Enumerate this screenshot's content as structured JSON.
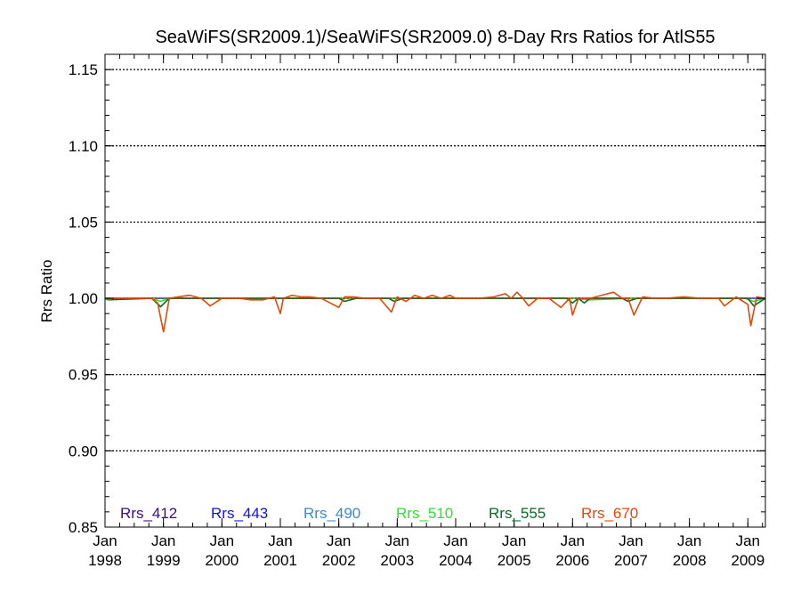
{
  "chart_data": {
    "type": "line",
    "title": "SeaWiFS(SR2009.1)/SeaWiFS(SR2009.0) 8-Day Rrs Ratios for AtlS55",
    "xlabel": "",
    "ylabel": "Rrs Ratio",
    "xlim": [
      1998.0,
      2009.3
    ],
    "ylim": [
      0.85,
      1.16
    ],
    "yticks": [
      0.85,
      0.9,
      0.95,
      1.0,
      1.05,
      1.1,
      1.15
    ],
    "ytick_labels": [
      "0.85",
      "0.90",
      "0.95",
      "1.00",
      "1.05",
      "1.10",
      "1.15"
    ],
    "xticks": [
      1998,
      1999,
      2000,
      2001,
      2002,
      2003,
      2004,
      2005,
      2006,
      2007,
      2008,
      2009
    ],
    "xtick_labels": [
      [
        "Jan",
        "1998"
      ],
      [
        "Jan",
        "1999"
      ],
      [
        "Jan",
        "2000"
      ],
      [
        "Jan",
        "2001"
      ],
      [
        "Jan",
        "2002"
      ],
      [
        "Jan",
        "2003"
      ],
      [
        "Jan",
        "2004"
      ],
      [
        "Jan",
        "2005"
      ],
      [
        "Jan",
        "2006"
      ],
      [
        "Jan",
        "2007"
      ],
      [
        "Jan",
        "2008"
      ],
      [
        "Jan",
        "2009"
      ]
    ],
    "grid": "dotted horizontal at major y ticks",
    "legend_position": "bottom",
    "series": [
      {
        "name": "Rrs_412",
        "color": "#3a0a8c",
        "x": [
          1998.0,
          1999.0,
          2000.0,
          2001.0,
          2002.0,
          2003.0,
          2004.0,
          2005.0,
          2006.0,
          2007.0,
          2008.0,
          2009.0,
          2009.3
        ],
        "y": [
          1.0,
          1.0,
          1.0,
          1.0,
          1.0,
          1.0,
          1.0,
          1.0,
          1.0,
          1.0,
          1.0,
          1.0,
          1.0
        ]
      },
      {
        "name": "Rrs_443",
        "color": "#1010f0",
        "x": [
          1998.0,
          1999.0,
          2000.0,
          2001.0,
          2002.0,
          2003.0,
          2004.0,
          2005.0,
          2006.0,
          2007.0,
          2008.0,
          2009.0,
          2009.3
        ],
        "y": [
          1.0,
          1.0,
          1.0,
          1.0,
          1.0,
          1.0,
          1.0,
          1.0,
          1.0,
          1.0,
          1.0,
          1.0,
          1.0
        ]
      },
      {
        "name": "Rrs_490",
        "color": "#3a8ad0",
        "x": [
          1998.0,
          1999.0,
          2000.0,
          2001.0,
          2002.0,
          2003.0,
          2004.0,
          2005.0,
          2006.0,
          2007.0,
          2008.0,
          2009.0,
          2009.3
        ],
        "y": [
          1.0,
          1.0,
          1.0,
          1.0,
          1.0,
          1.0,
          1.0,
          1.0,
          1.0,
          1.0,
          1.0,
          1.0,
          1.0
        ]
      },
      {
        "name": "Rrs_510",
        "color": "#30e030",
        "x": [
          1998.0,
          1998.8,
          1998.95,
          1999.1,
          1999.3,
          2003.0,
          2006.0,
          2006.3,
          2007.0,
          2008.95,
          2009.1,
          2009.3
        ],
        "y": [
          1.0,
          1.0,
          0.998,
          1.0,
          1.0,
          1.0,
          1.0,
          0.999,
          1.0,
          1.0,
          0.998,
          1.0
        ]
      },
      {
        "name": "Rrs_555",
        "color": "#0a6a2a",
        "x": [
          1998.0,
          1998.05,
          1998.8,
          1998.95,
          1999.1,
          1999.3,
          2000.0,
          2001.0,
          2002.0,
          2002.1,
          2002.3,
          2002.85,
          2002.95,
          2003.1,
          2004.0,
          2005.0,
          2005.9,
          2006.0,
          2006.1,
          2006.2,
          2006.3,
          2006.85,
          2006.95,
          2007.1,
          2008.0,
          2008.9,
          2009.0,
          2009.1,
          2009.3
        ],
        "y": [
          1.0,
          0.999,
          1.0,
          0.9945,
          1.0,
          1.0,
          1.0,
          1.0,
          1.0,
          0.998,
          1.0,
          1.0,
          0.998,
          1.0,
          1.0,
          1.0,
          1.0,
          0.997,
          1.0,
          0.997,
          1.0,
          1.0,
          0.998,
          1.0,
          1.0,
          1.0,
          1.0,
          0.995,
          1.0
        ]
      },
      {
        "name": "Rrs_670",
        "color": "#e04a0a",
        "x": [
          1998.0,
          1998.05,
          1998.15,
          1998.8,
          1998.9,
          1999.0,
          1999.1,
          1999.25,
          1999.45,
          1999.65,
          1999.8,
          2000.0,
          2000.3,
          2000.5,
          2000.7,
          2000.9,
          2001.0,
          2001.05,
          2001.2,
          2001.35,
          2001.5,
          2001.7,
          2002.0,
          2002.1,
          2002.25,
          2002.45,
          2002.7,
          2002.9,
          2003.0,
          2003.15,
          2003.3,
          2003.45,
          2003.6,
          2003.75,
          2003.9,
          2004.0,
          2004.15,
          2004.4,
          2004.65,
          2004.85,
          2004.95,
          2005.05,
          2005.15,
          2005.25,
          2005.4,
          2005.6,
          2005.8,
          2005.95,
          2006.0,
          2006.1,
          2006.2,
          2006.3,
          2006.5,
          2006.7,
          2006.85,
          2006.95,
          2007.05,
          2007.2,
          2007.4,
          2007.6,
          2007.9,
          2008.2,
          2008.5,
          2008.6,
          2008.8,
          2009.0,
          2009.05,
          2009.15,
          2009.3
        ],
        "y": [
          1.0,
          0.999,
          1.0,
          1.0,
          0.997,
          0.978,
          1.0,
          1.001,
          1.002,
          1.0,
          0.995,
          1.0,
          1.0,
          0.999,
          0.999,
          1.001,
          0.99,
          1.0,
          1.002,
          1.001,
          1.001,
          1.0,
          0.994,
          1.001,
          1.001,
          1.0,
          1.0,
          0.991,
          1.001,
          0.998,
          1.002,
          1.0,
          1.002,
          1.0,
          1.002,
          1.0,
          1.0,
          1.0,
          1.001,
          1.003,
          1.0,
          1.004,
          1.0,
          0.995,
          1.0,
          1.0,
          0.994,
          1.0,
          0.989,
          1.0,
          1.0,
          1.0,
          1.002,
          1.004,
          1.0,
          1.0,
          0.989,
          1.001,
          1.0,
          1.0,
          1.001,
          1.0,
          1.0,
          0.995,
          1.001,
          0.996,
          0.982,
          1.001,
          1.0
        ]
      }
    ]
  }
}
